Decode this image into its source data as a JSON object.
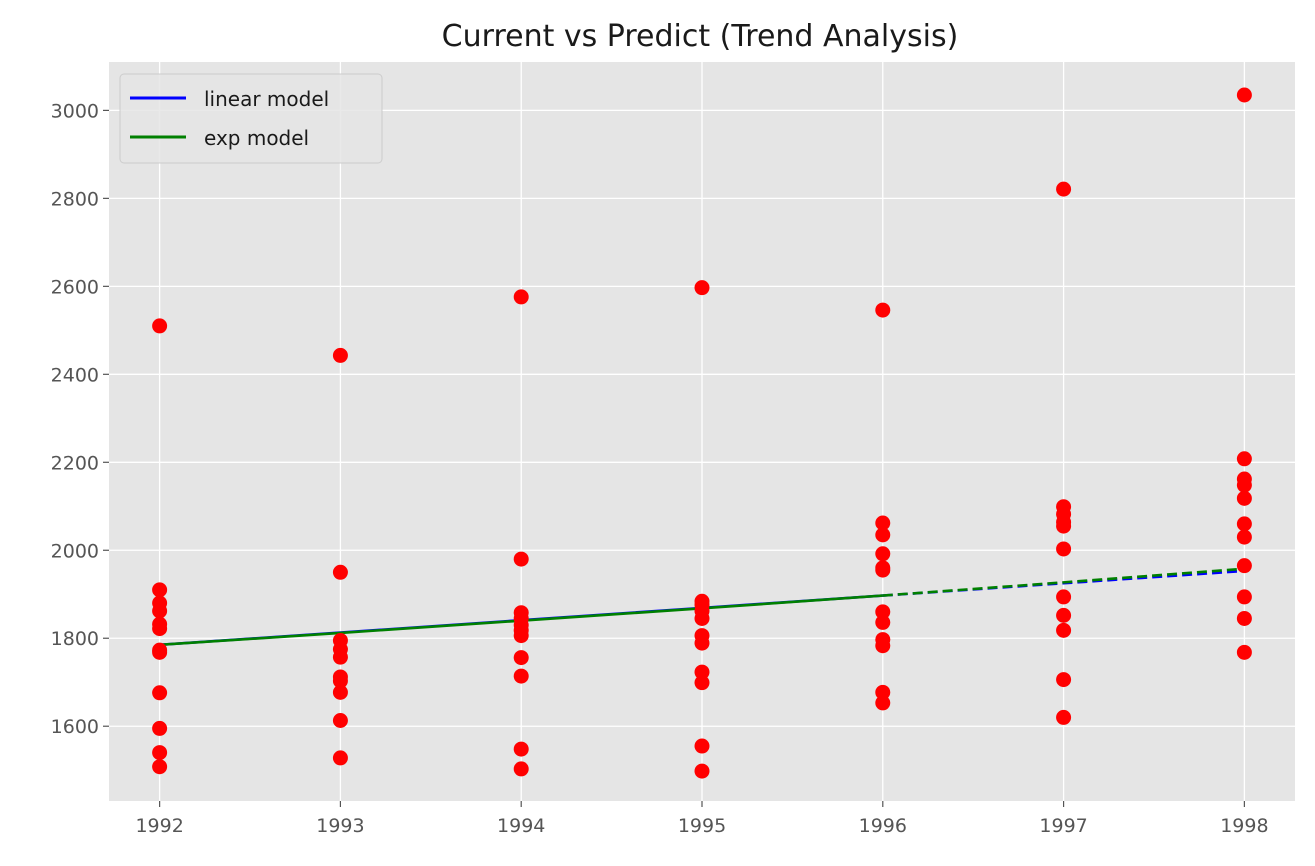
{
  "chart_data": {
    "type": "scatter",
    "title": "Current vs Predict (Trend Analysis)",
    "xlabel": "",
    "ylabel": "",
    "xlim": [
      1991.72,
      1998.28
    ],
    "ylim": [
      1430,
      3110
    ],
    "x_ticks": [
      1992,
      1993,
      1994,
      1995,
      1996,
      1997,
      1998
    ],
    "y_ticks": [
      1600,
      1800,
      2000,
      2200,
      2400,
      2600,
      2800,
      3000
    ],
    "grid": true,
    "legend_position": "top-left",
    "points": {
      "color": "#ff0000",
      "data": [
        [
          1992,
          2510
        ],
        [
          1992,
          1910
        ],
        [
          1992,
          1880
        ],
        [
          1992,
          1862
        ],
        [
          1992,
          1832
        ],
        [
          1992,
          1822
        ],
        [
          1992,
          1773
        ],
        [
          1992,
          1768
        ],
        [
          1992,
          1676
        ],
        [
          1992,
          1595
        ],
        [
          1992,
          1540
        ],
        [
          1992,
          1508
        ],
        [
          1993,
          2443
        ],
        [
          1993,
          1950
        ],
        [
          1993,
          1795
        ],
        [
          1993,
          1775
        ],
        [
          1993,
          1757
        ],
        [
          1993,
          1712
        ],
        [
          1993,
          1703
        ],
        [
          1993,
          1677
        ],
        [
          1993,
          1613
        ],
        [
          1993,
          1528
        ],
        [
          1994,
          2576
        ],
        [
          1994,
          1980
        ],
        [
          1994,
          1858
        ],
        [
          1994,
          1845
        ],
        [
          1994,
          1830
        ],
        [
          1994,
          1818
        ],
        [
          1994,
          1806
        ],
        [
          1994,
          1756
        ],
        [
          1994,
          1714
        ],
        [
          1994,
          1548
        ],
        [
          1994,
          1503
        ],
        [
          1995,
          2597
        ],
        [
          1995,
          1884
        ],
        [
          1995,
          1876
        ],
        [
          1995,
          1862
        ],
        [
          1995,
          1845
        ],
        [
          1995,
          1806
        ],
        [
          1995,
          1789
        ],
        [
          1995,
          1723
        ],
        [
          1995,
          1699
        ],
        [
          1995,
          1555
        ],
        [
          1995,
          1498
        ],
        [
          1996,
          2546
        ],
        [
          1996,
          2062
        ],
        [
          1996,
          2035
        ],
        [
          1996,
          1992
        ],
        [
          1996,
          1960
        ],
        [
          1996,
          1955
        ],
        [
          1996,
          1860
        ],
        [
          1996,
          1836
        ],
        [
          1996,
          1797
        ],
        [
          1996,
          1783
        ],
        [
          1996,
          1677
        ],
        [
          1996,
          1653
        ],
        [
          1997,
          2821
        ],
        [
          1997,
          2099
        ],
        [
          1997,
          2082
        ],
        [
          1997,
          2064
        ],
        [
          1997,
          2055
        ],
        [
          1997,
          2003
        ],
        [
          1997,
          1894
        ],
        [
          1997,
          1852
        ],
        [
          1997,
          1818
        ],
        [
          1997,
          1706
        ],
        [
          1997,
          1620
        ],
        [
          1998,
          3035
        ],
        [
          1998,
          2208
        ],
        [
          1998,
          2162
        ],
        [
          1998,
          2148
        ],
        [
          1998,
          2118
        ],
        [
          1998,
          2060
        ],
        [
          1998,
          2030
        ],
        [
          1998,
          1965
        ],
        [
          1998,
          1894
        ],
        [
          1998,
          1845
        ],
        [
          1998,
          1768
        ]
      ]
    },
    "series": [
      {
        "name": "linear model",
        "color": "#0000ff",
        "fit": {
          "x": [
            1992,
            1993,
            1994,
            1995,
            1996
          ],
          "y": [
            1785,
            1813,
            1841,
            1869,
            1897
          ]
        },
        "predict": {
          "x": [
            1996,
            1997,
            1998
          ],
          "y": [
            1897,
            1925,
            1953
          ]
        }
      },
      {
        "name": "exp model",
        "color": "#008000",
        "fit": {
          "x": [
            1992,
            1993,
            1994,
            1995,
            1996
          ],
          "y": [
            1785,
            1812,
            1840,
            1868,
            1897
          ]
        },
        "predict": {
          "x": [
            1996,
            1997,
            1998
          ],
          "y": [
            1897,
            1927,
            1958
          ]
        }
      }
    ]
  }
}
